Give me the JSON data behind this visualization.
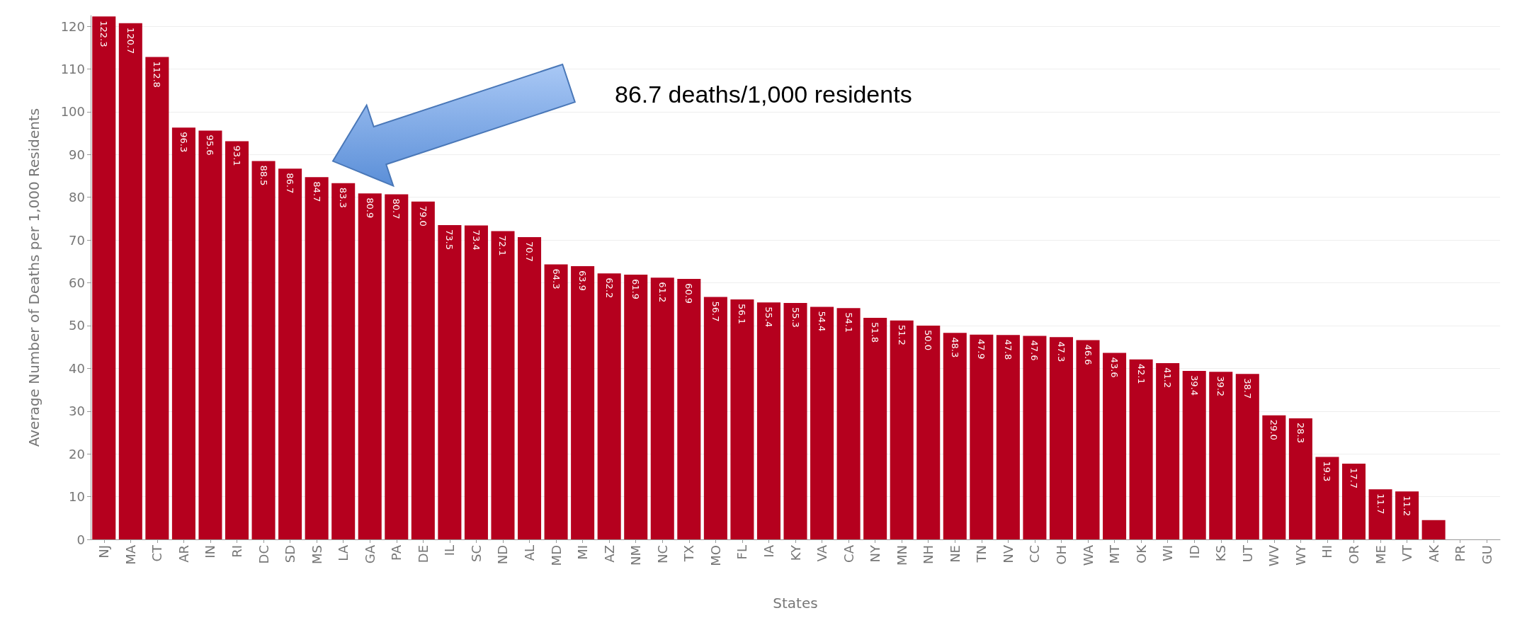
{
  "chart_data": {
    "type": "bar",
    "xlabel": "States",
    "ylabel": "Average Number of Deaths per 1,000 Residents",
    "categories": [
      "NJ",
      "MA",
      "CT",
      "AR",
      "IN",
      "RI",
      "DC",
      "SD",
      "MS",
      "LA",
      "GA",
      "PA",
      "DE",
      "IL",
      "SC",
      "ND",
      "AL",
      "MD",
      "MI",
      "AZ",
      "NM",
      "NC",
      "TX",
      "MO",
      "FL",
      "IA",
      "KY",
      "VA",
      "CA",
      "NY",
      "MN",
      "NH",
      "NE",
      "TN",
      "NV",
      "CC",
      "OH",
      "WA",
      "MT",
      "OK",
      "WI",
      "ID",
      "KS",
      "UT",
      "WV",
      "WY",
      "HI",
      "OR",
      "ME",
      "VT",
      "AK",
      "PR",
      "GU"
    ],
    "values": [
      122.3,
      120.7,
      112.8,
      96.3,
      95.6,
      93.1,
      88.5,
      86.7,
      84.7,
      83.3,
      80.9,
      80.7,
      79.0,
      73.5,
      73.4,
      72.1,
      70.7,
      64.3,
      63.9,
      62.2,
      61.9,
      61.2,
      60.9,
      56.7,
      56.1,
      55.4,
      55.3,
      54.4,
      54.1,
      51.8,
      51.2,
      50.0,
      48.3,
      47.9,
      47.8,
      47.6,
      47.3,
      46.6,
      43.6,
      42.1,
      41.2,
      39.4,
      39.2,
      38.7,
      29.0,
      28.3,
      19.3,
      17.7,
      11.7,
      11.2,
      4.5,
      null,
      null
    ],
    "value_labels": [
      "122.3",
      "120.7",
      "112.8",
      "96.3",
      "95.6",
      "93.1",
      "88.5",
      "86.7",
      "84.7",
      "83.3",
      "80.9",
      "80.7",
      "79.0",
      "73.5",
      "73.4",
      "72.1",
      "70.7",
      "64.3",
      "63.9",
      "62.2",
      "61.9",
      "61.2",
      "60.9",
      "56.7",
      "56.1",
      "55.4",
      "55.3",
      "54.4",
      "54.1",
      "51.8",
      "51.2",
      "50.0",
      "48.3",
      "47.9",
      "47.8",
      "47.6",
      "47.3",
      "46.6",
      "43.6",
      "42.1",
      "41.2",
      "39.4",
      "39.2",
      "38.7",
      "29.0",
      "28.3",
      "19.3",
      "17.7",
      "11.7",
      "11.2",
      null,
      null,
      null
    ],
    "color": "#b5001e",
    "ylim": [
      0,
      122.5
    ],
    "yticks": [
      0,
      10,
      20,
      30,
      40,
      50,
      60,
      70,
      80,
      90,
      100,
      110,
      120
    ],
    "grid": "y",
    "annotations": [
      "86.7 deaths/1,000 residents"
    ]
  }
}
